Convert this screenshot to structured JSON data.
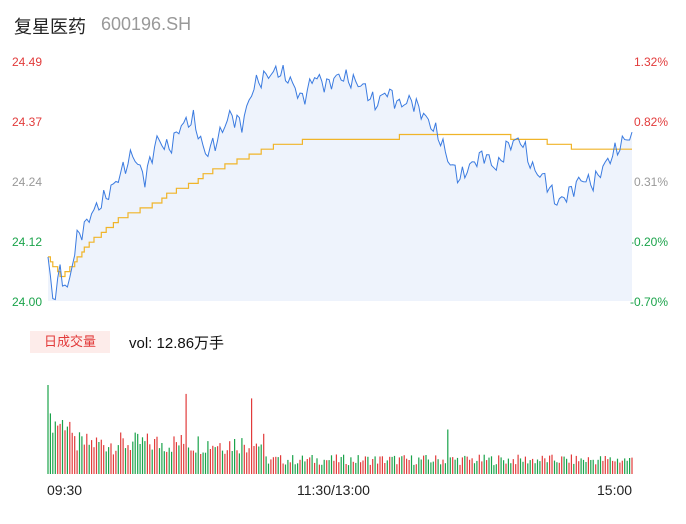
{
  "header": {
    "name": "复星医药",
    "code": "600196.SH"
  },
  "colors": {
    "up": "#e23b3b",
    "down": "#1aa34a",
    "neutral": "#999999",
    "price_line": "#3b7be0",
    "avg_line": "#f0b429",
    "fill": "#eef3fc"
  },
  "volume": {
    "tag": "日成交量",
    "label": "vol: 12.86万手"
  },
  "chart_data": {
    "type": "line",
    "title": "",
    "y_left_ticks": [
      "24.49",
      "24.37",
      "24.24",
      "24.12",
      "24.00"
    ],
    "y_right_ticks": [
      "1.32%",
      "0.82%",
      "0.31%",
      "-0.20%",
      "-0.70%"
    ],
    "x_ticks": [
      "09:30",
      "11:30/13:00",
      "15:00"
    ],
    "ylim": [
      24.0,
      24.49
    ],
    "x_count": 242,
    "series": [
      {
        "type": "line",
        "price_path": [
          [
            0,
            24.09
          ],
          [
            2,
            24.0
          ],
          [
            5,
            24.06
          ],
          [
            8,
            24.02
          ],
          [
            12,
            24.13
          ],
          [
            15,
            24.15
          ],
          [
            18,
            24.18
          ],
          [
            22,
            24.2
          ],
          [
            25,
            24.22
          ],
          [
            30,
            24.26
          ],
          [
            35,
            24.3
          ],
          [
            40,
            24.25
          ],
          [
            45,
            24.33
          ],
          [
            50,
            24.31
          ],
          [
            55,
            24.36
          ],
          [
            60,
            24.37
          ],
          [
            65,
            24.3
          ],
          [
            70,
            24.33
          ],
          [
            75,
            24.38
          ],
          [
            80,
            24.36
          ],
          [
            85,
            24.44
          ],
          [
            90,
            24.46
          ],
          [
            95,
            24.47
          ],
          [
            100,
            24.45
          ],
          [
            105,
            24.41
          ],
          [
            110,
            24.46
          ],
          [
            115,
            24.44
          ],
          [
            120,
            24.46
          ],
          [
            125,
            24.45
          ],
          [
            130,
            24.44
          ],
          [
            135,
            24.4
          ],
          [
            140,
            24.43
          ],
          [
            145,
            24.4
          ],
          [
            150,
            24.41
          ],
          [
            155,
            24.38
          ],
          [
            158,
            24.36
          ],
          [
            162,
            24.33
          ],
          [
            165,
            24.29
          ],
          [
            170,
            24.25
          ],
          [
            175,
            24.28
          ],
          [
            180,
            24.3
          ],
          [
            185,
            24.27
          ],
          [
            190,
            24.32
          ],
          [
            195,
            24.33
          ],
          [
            200,
            24.27
          ],
          [
            205,
            24.25
          ],
          [
            210,
            24.2
          ],
          [
            215,
            24.22
          ],
          [
            220,
            24.25
          ],
          [
            225,
            24.24
          ],
          [
            230,
            24.28
          ],
          [
            235,
            24.31
          ],
          [
            238,
            24.33
          ],
          [
            242,
            24.34
          ]
        ],
        "avg_path": [
          [
            0,
            24.09
          ],
          [
            5,
            24.05
          ],
          [
            10,
            24.07
          ],
          [
            15,
            24.11
          ],
          [
            20,
            24.13
          ],
          [
            25,
            24.15
          ],
          [
            30,
            24.17
          ],
          [
            35,
            24.18
          ],
          [
            40,
            24.19
          ],
          [
            45,
            24.2
          ],
          [
            50,
            24.22
          ],
          [
            55,
            24.23
          ],
          [
            60,
            24.24
          ],
          [
            65,
            24.26
          ],
          [
            70,
            24.27
          ],
          [
            75,
            24.28
          ],
          [
            80,
            24.29
          ],
          [
            85,
            24.3
          ],
          [
            90,
            24.31
          ],
          [
            95,
            24.32
          ],
          [
            100,
            24.32
          ],
          [
            110,
            24.33
          ],
          [
            120,
            24.33
          ],
          [
            130,
            24.33
          ],
          [
            140,
            24.33
          ],
          [
            150,
            24.34
          ],
          [
            160,
            24.34
          ],
          [
            170,
            24.34
          ],
          [
            180,
            24.34
          ],
          [
            200,
            24.33
          ],
          [
            220,
            24.31
          ],
          [
            242,
            24.31
          ]
        ]
      }
    ]
  }
}
